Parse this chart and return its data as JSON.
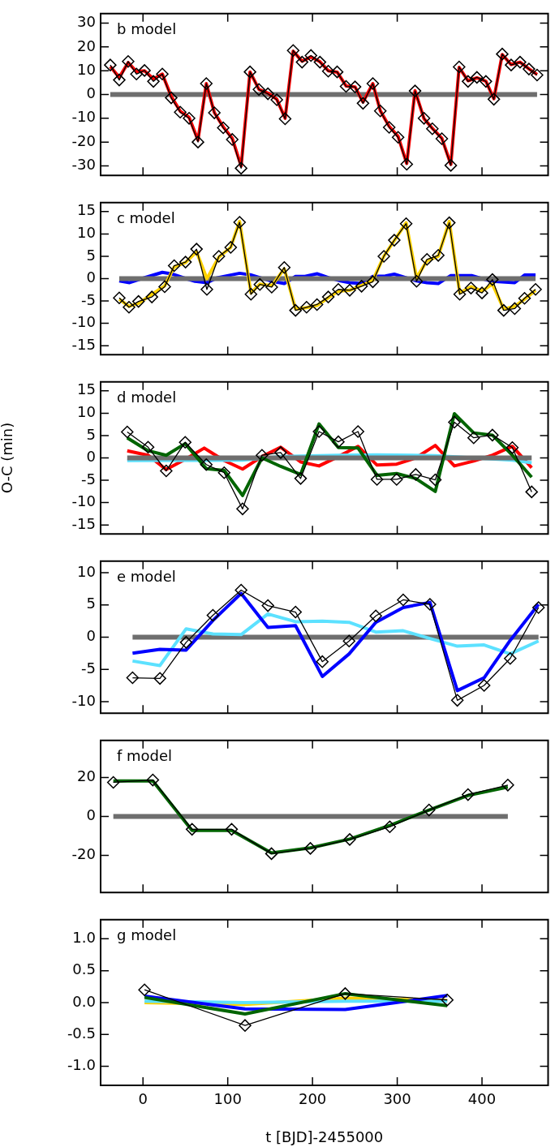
{
  "chart_data": [
    {
      "type": "line",
      "title": "b model",
      "xlim": [
        -50,
        478
      ],
      "xticks": [
        0,
        100,
        200,
        300,
        400
      ],
      "ylim": [
        -34,
        34
      ],
      "yticks": [
        -30,
        -20,
        -10,
        0,
        10,
        20,
        30
      ],
      "tick_labels": "y",
      "series": [
        {
          "type": "line",
          "color": "#6e6e6e",
          "marker": "none",
          "x": [
            -38.6,
            465
          ],
          "values": [
            0,
            0
          ]
        },
        {
          "type": "line",
          "color": "#ff0000",
          "marker": "none",
          "x": [
            -38.6,
            -28,
            -17.5,
            -7.7,
            1.8,
            12.3,
            22.8,
            33.3,
            43.9,
            54.4,
            64.9,
            74.7,
            84.2,
            94.7,
            105.3,
            115.8,
            126.3,
            136.8,
            147.4,
            157.9,
            167.7,
            177.2,
            187.7,
            198.2,
            208.8,
            218.6,
            229.1,
            239.6,
            250.2,
            259.6,
            271.2,
            280,
            290.5,
            301,
            311.2,
            321,
            331.6,
            341.4,
            352.6,
            363.2,
            373,
            383.5,
            394,
            404.6,
            414,
            423.9,
            434.4,
            444.9,
            455.4,
            465
          ],
          "values": [
            11.8,
            7.2,
            13.4,
            9.6,
            10.0,
            6.6,
            8.6,
            -0.8,
            -7.0,
            -9.6,
            -19.2,
            4.6,
            -7.6,
            -13.6,
            -18.4,
            -30.1,
            9.5,
            2.2,
            0.6,
            -2.0,
            -10.0,
            18.2,
            14.0,
            15.8,
            13.8,
            10.0,
            9.4,
            3.6,
            3.2,
            -3.2,
            4.6,
            -6.8,
            -13.4,
            -17.6,
            -29.0,
            1.6,
            -10.2,
            -14.2,
            -18.4,
            -29.4,
            11.4,
            5.8,
            7.0,
            5.6,
            -1.8,
            16.8,
            12.6,
            13.6,
            10.8,
            8.4
          ]
        },
        {
          "type": "line",
          "color": "#000000",
          "marker": "diamond",
          "x": [
            -38.6,
            -28,
            -17.5,
            -7.7,
            1.8,
            12.3,
            22.8,
            33.3,
            43.9,
            54.4,
            64.9,
            74.7,
            84.2,
            94.7,
            105.3,
            115.8,
            126.3,
            136.8,
            147.4,
            157.9,
            167.7,
            177.2,
            187.7,
            198.2,
            208.8,
            218.6,
            229.1,
            239.6,
            250.2,
            259.6,
            271.2,
            280,
            290.5,
            301,
            311.2,
            321,
            331.6,
            341.4,
            352.6,
            363.2,
            373,
            383.5,
            394,
            404.6,
            414,
            423.9,
            434.4,
            444.9,
            455.4,
            465
          ],
          "values": [
            12.4,
            6.1,
            13.9,
            8.6,
            10.1,
            5.5,
            8.6,
            -1.4,
            -7.4,
            -10,
            -20,
            4.6,
            -7.7,
            -14,
            -18.9,
            -31,
            9.5,
            2.1,
            0.3,
            -2.2,
            -10.2,
            18.5,
            13.6,
            16.4,
            13.6,
            9.8,
            9.5,
            3.4,
            3.2,
            -3.7,
            4.6,
            -6.9,
            -13.8,
            -18,
            -29.3,
            1.5,
            -10,
            -14.4,
            -18.6,
            -29.8,
            11.6,
            5.5,
            7.2,
            5.5,
            -2,
            17,
            12.4,
            13.6,
            10.7,
            8.2
          ]
        }
      ]
    },
    {
      "type": "line",
      "title": "c model",
      "xlim": [
        -50,
        478
      ],
      "xticks": [
        0,
        100,
        200,
        300,
        400
      ],
      "ylim": [
        -17,
        17
      ],
      "yticks": [
        -15,
        -10,
        -5,
        0,
        5,
        10,
        15
      ],
      "tick_labels": "y",
      "series": [
        {
          "type": "line",
          "color": "#0000ff",
          "marker": "none",
          "x": [
            -28,
            -15.8,
            -1.8,
            22.8,
            33.3,
            50.9,
            61.4,
            75.4,
            87.7,
            114,
            128.1,
            152.6,
            166.7,
            180,
            191.2,
            205.3,
            219.3,
            233.3,
            243.9,
            257.9,
            271.2,
            286,
            296.5,
            310.5,
            322.8,
            335.1,
            348.4,
            363.2,
            387.7,
            400,
            412.3,
            438.6,
            450.2,
            463.2
          ],
          "values": [
            -0.5,
            -0.9,
            0,
            1.4,
            1.1,
            0,
            -0.6,
            -0.9,
            0.2,
            1.2,
            0.8,
            -0.6,
            -1.1,
            0.5,
            0.5,
            1.1,
            0.2,
            -0.5,
            -0.9,
            -1.1,
            0.5,
            0.6,
            1.0,
            0.2,
            -0.5,
            -0.9,
            -1.1,
            0.7,
            0.7,
            0,
            -0.6,
            -0.9,
            0.8,
            0.8
          ]
        },
        {
          "type": "line",
          "color": "#6e6e6e",
          "marker": "none",
          "x": [
            -28,
            463.2
          ],
          "values": [
            0,
            0
          ]
        },
        {
          "type": "line",
          "color": "#ffd200",
          "marker": "none",
          "x": [
            -28,
            -16.5,
            -5.3,
            10.5,
            25.6,
            36.8,
            50.2,
            63.2,
            75.4,
            89.5,
            103.5,
            114,
            127.4,
            137.9,
            151.9,
            166.7,
            180,
            193,
            205.3,
            218.6,
            230.5,
            243.9,
            257.9,
            271.2,
            284.2,
            296.5,
            310.5,
            322.8,
            335.1,
            348.4,
            361.4,
            373.7,
            387,
            400,
            412.3,
            425.6,
            438.6,
            450.2,
            463.2
          ],
          "values": [
            -4.6,
            -6.2,
            -5.5,
            -3.5,
            -1.6,
            2.6,
            3.6,
            6.0,
            0,
            4.8,
            7.0,
            12.8,
            -3.2,
            -1.2,
            -1.6,
            2.2,
            -6.8,
            -6.5,
            -6.0,
            -4.3,
            -2.8,
            -2.6,
            -1.5,
            -0.4,
            5.0,
            8.5,
            12.5,
            0.2,
            4.0,
            5.0,
            12.8,
            -3.2,
            -1.8,
            -2.8,
            -1.2,
            -6.8,
            -6.2,
            -4.6,
            -2.6
          ]
        },
        {
          "type": "line",
          "color": "#000000",
          "marker": "diamond",
          "x": [
            -28,
            -16.5,
            -5.3,
            10.5,
            25.6,
            36.8,
            50.2,
            63.2,
            75.4,
            89.5,
            103.5,
            114,
            127.4,
            137.9,
            151.9,
            166.7,
            180,
            193,
            205.3,
            218.6,
            230.5,
            243.9,
            257.9,
            271.2,
            284.2,
            296.5,
            310.5,
            322.8,
            335.1,
            348.4,
            361.4,
            373.7,
            387,
            400,
            412.3,
            425.6,
            438.6,
            450.2,
            463.2
          ],
          "values": [
            -4.3,
            -6.4,
            -5.1,
            -4.1,
            -1.8,
            2.9,
            3.7,
            6.6,
            -2.4,
            5.0,
            7.0,
            12.6,
            -3.5,
            -1.3,
            -1.9,
            2.5,
            -7.1,
            -6.4,
            -5.8,
            -4.1,
            -2.4,
            -2.6,
            -1.7,
            -0.7,
            5.0,
            8.6,
            12.3,
            -0.6,
            4.3,
            5.2,
            12.5,
            -3.5,
            -2.1,
            -3.2,
            -0.2,
            -7.1,
            -6.7,
            -4.4,
            -2.4
          ]
        }
      ]
    },
    {
      "type": "line",
      "title": "d model",
      "ylabel": "O-C (min)",
      "xlim": [
        -50,
        478
      ],
      "xticks": [
        0,
        100,
        200,
        300,
        400
      ],
      "ylim": [
        -17,
        17
      ],
      "yticks": [
        -15,
        -10,
        -5,
        0,
        5,
        10,
        15
      ],
      "tick_labels": "y",
      "series": [
        {
          "type": "line",
          "color": "#ff0000",
          "marker": "none",
          "x": [
            -18.6,
            6,
            27.4,
            49.8,
            72.3,
            95.8,
            117.5,
            140.4,
            162.5,
            186,
            207.7,
            230.5,
            253.7,
            276.1,
            299.3,
            321.8,
            344.9,
            367.4,
            390.2,
            412.3,
            435.8,
            458.6
          ],
          "values": [
            1.6,
            0.6,
            -2.6,
            -0.3,
            2.2,
            -0.6,
            -2.5,
            0.3,
            2.4,
            -0.9,
            -1.8,
            0.3,
            2.6,
            -1.6,
            -1.4,
            0,
            2.8,
            -1.8,
            -0.7,
            0.6,
            2.6,
            -2.2
          ]
        },
        {
          "type": "line",
          "color": "#5ce1ff",
          "marker": "none",
          "x": [
            -18.6,
            117.5,
            162.5,
            230.5,
            276.1,
            344.9,
            435.8,
            458.6
          ],
          "values": [
            -0.6,
            -0.5,
            0.3,
            0.6,
            0.7,
            0.5,
            -0.5,
            -1.1
          ]
        },
        {
          "type": "line",
          "color": "#6e6e6e",
          "marker": "none",
          "x": [
            -18.6,
            458.6
          ],
          "values": [
            0,
            0
          ]
        },
        {
          "type": "line",
          "color": "#006400",
          "marker": "none",
          "x": [
            -18.6,
            6,
            27.4,
            49.8,
            74.7,
            95.8,
            117.5,
            140.4,
            162.5,
            186,
            207.7,
            230.5,
            253.7,
            276.1,
            299.3,
            321.8,
            344.9,
            367.4,
            390.2,
            412.3,
            435.8,
            458.6
          ],
          "values": [
            4.5,
            1.6,
            0.6,
            3.2,
            -2.4,
            -2.8,
            -8.4,
            0,
            -1.9,
            -3.7,
            7.6,
            2.3,
            2.2,
            -3.9,
            -3.5,
            -4.6,
            -7.5,
            9.9,
            5.6,
            5.1,
            0.6,
            -4.3
          ]
        },
        {
          "type": "line",
          "color": "#000000",
          "marker": "diamond",
          "x": [
            -18.6,
            6,
            27.4,
            49.8,
            74.7,
            95.8,
            117.5,
            140.4,
            162.5,
            186,
            207.7,
            230.5,
            253.7,
            276.1,
            299.3,
            321.8,
            344.9,
            367.4,
            390.2,
            412.3,
            435.8,
            458.6
          ],
          "values": [
            5.8,
            2.4,
            -2.9,
            3.5,
            -1.5,
            -3.3,
            -11.4,
            0.6,
            1.2,
            -4.6,
            5.9,
            3.6,
            5.9,
            -4.8,
            -4.8,
            -3.7,
            -4.9,
            8.0,
            4.5,
            5.1,
            2.3,
            -7.6
          ]
        }
      ]
    },
    {
      "type": "line",
      "title": "e model",
      "xlim": [
        -50,
        478
      ],
      "xticks": [
        0,
        100,
        200,
        300,
        400
      ],
      "ylim": [
        -11.8,
        11.8
      ],
      "yticks": [
        -10,
        -5,
        0,
        5,
        10
      ],
      "tick_labels": "y",
      "series": [
        {
          "type": "line",
          "color": "#6e6e6e",
          "marker": "none",
          "x": [
            -12.3,
            466.7
          ],
          "values": [
            0,
            0
          ]
        },
        {
          "type": "line",
          "color": "#5ce1ff",
          "marker": "none",
          "x": [
            -12.3,
            20,
            50.9,
            82.5,
            115.8,
            147.4,
            180,
            211.6,
            243.2,
            274.7,
            307,
            338.6,
            370.9,
            402.5,
            433.3,
            466.7
          ],
          "values": [
            -3.7,
            -4.4,
            1.3,
            0.5,
            0.4,
            3.6,
            2.4,
            2.5,
            2.3,
            0.8,
            1.0,
            -0.2,
            -1.4,
            -1.2,
            -2.6,
            -0.6
          ]
        },
        {
          "type": "line",
          "color": "#0000ff",
          "marker": "none",
          "x": [
            -12.3,
            20,
            50.9,
            82.5,
            115.8,
            147.4,
            180,
            211.6,
            243.2,
            274.7,
            307,
            338.6,
            370.9,
            402.5,
            433.3,
            466.7
          ],
          "values": [
            -2.5,
            -1.9,
            -2.0,
            2.6,
            6.8,
            1.5,
            1.8,
            -6.1,
            -2.6,
            2.3,
            4.6,
            5.4,
            -8.3,
            -6.3,
            -0.5,
            5.1
          ]
        },
        {
          "type": "line",
          "color": "#000000",
          "marker": "diamond",
          "x": [
            -12.3,
            20,
            50.9,
            82.5,
            115.8,
            147.4,
            180,
            211.6,
            243.2,
            274.7,
            307,
            338.6,
            370.9,
            402.5,
            433.3,
            466.7
          ],
          "values": [
            -6.3,
            -6.4,
            -0.8,
            3.4,
            7.3,
            4.9,
            3.9,
            -3.8,
            -0.6,
            3.3,
            5.8,
            5.1,
            -9.8,
            -7.5,
            -3.3,
            4.6
          ]
        }
      ]
    },
    {
      "type": "line",
      "title": "f model",
      "xlim": [
        -50,
        478
      ],
      "xticks": [
        0,
        100,
        200,
        300,
        400
      ],
      "ylim": [
        -39,
        39
      ],
      "yticks": [
        -20,
        0,
        20
      ],
      "tick_labels": "y",
      "series": [
        {
          "type": "line",
          "color": "#6e6e6e",
          "marker": "none",
          "x": [
            -35,
            430.5
          ],
          "values": [
            0,
            0
          ]
        },
        {
          "type": "line",
          "color": "#006400",
          "marker": "none",
          "x": [
            -35,
            11.6,
            57.9,
            104.6,
            151.6,
            197.5,
            243.9,
            291.2,
            337.5,
            383.5,
            430.5
          ],
          "values": [
            18.2,
            18.2,
            -7.2,
            -7.2,
            -18.7,
            -16.1,
            -11.6,
            -4.6,
            3.3,
            10.8,
            15.1
          ]
        },
        {
          "type": "line",
          "color": "#000000",
          "marker": "diamond",
          "x": [
            -35,
            11.6,
            57.9,
            104.6,
            151.6,
            197.5,
            243.9,
            291.2,
            337.5,
            383.5,
            430.5
          ],
          "values": [
            17.5,
            18.7,
            -6.6,
            -6.6,
            -19.1,
            -16.4,
            -11.8,
            -5.3,
            3.3,
            11.2,
            16.1
          ]
        }
      ]
    },
    {
      "type": "line",
      "title": "g model",
      "xlabel": "t [BJD]-2455000",
      "xlim": [
        -50,
        478
      ],
      "xticks": [
        0,
        100,
        200,
        300,
        400
      ],
      "ylim": [
        -1.3,
        1.3
      ],
      "yticks": [
        {
          "value": -1,
          "label": "-1.0"
        },
        -0.5,
        {
          "value": 0,
          "label": "0.0"
        },
        0.5,
        {
          "value": 1,
          "label": "1.0"
        }
      ],
      "series": [
        {
          "type": "line",
          "color": "#ffd200",
          "marker": "none",
          "x": [
            1.8,
            120.4,
            238.6,
            359
          ],
          "values": [
            0,
            -0.03,
            0.07,
            0.03
          ]
        },
        {
          "type": "line",
          "color": "#5ce1ff",
          "marker": "none",
          "x": [
            1.8,
            120.4,
            238.6,
            359
          ],
          "values": [
            0.02,
            0,
            0.02,
            0.02
          ]
        },
        {
          "type": "line",
          "color": "#0000ff",
          "marker": "none",
          "x": [
            1.8,
            120.4,
            238.6,
            359
          ],
          "values": [
            0.1,
            -0.1,
            -0.11,
            0.11
          ]
        },
        {
          "type": "line",
          "color": "#006400",
          "marker": "none",
          "x": [
            1.8,
            120.4,
            238.6,
            359
          ],
          "values": [
            0.08,
            -0.18,
            0.14,
            -0.05
          ]
        },
        {
          "type": "line",
          "color": "#000000",
          "marker": "diamond",
          "x": [
            1.8,
            120.4,
            238.6,
            359
          ],
          "values": [
            0.2,
            -0.36,
            0.14,
            0.04
          ]
        }
      ]
    }
  ]
}
